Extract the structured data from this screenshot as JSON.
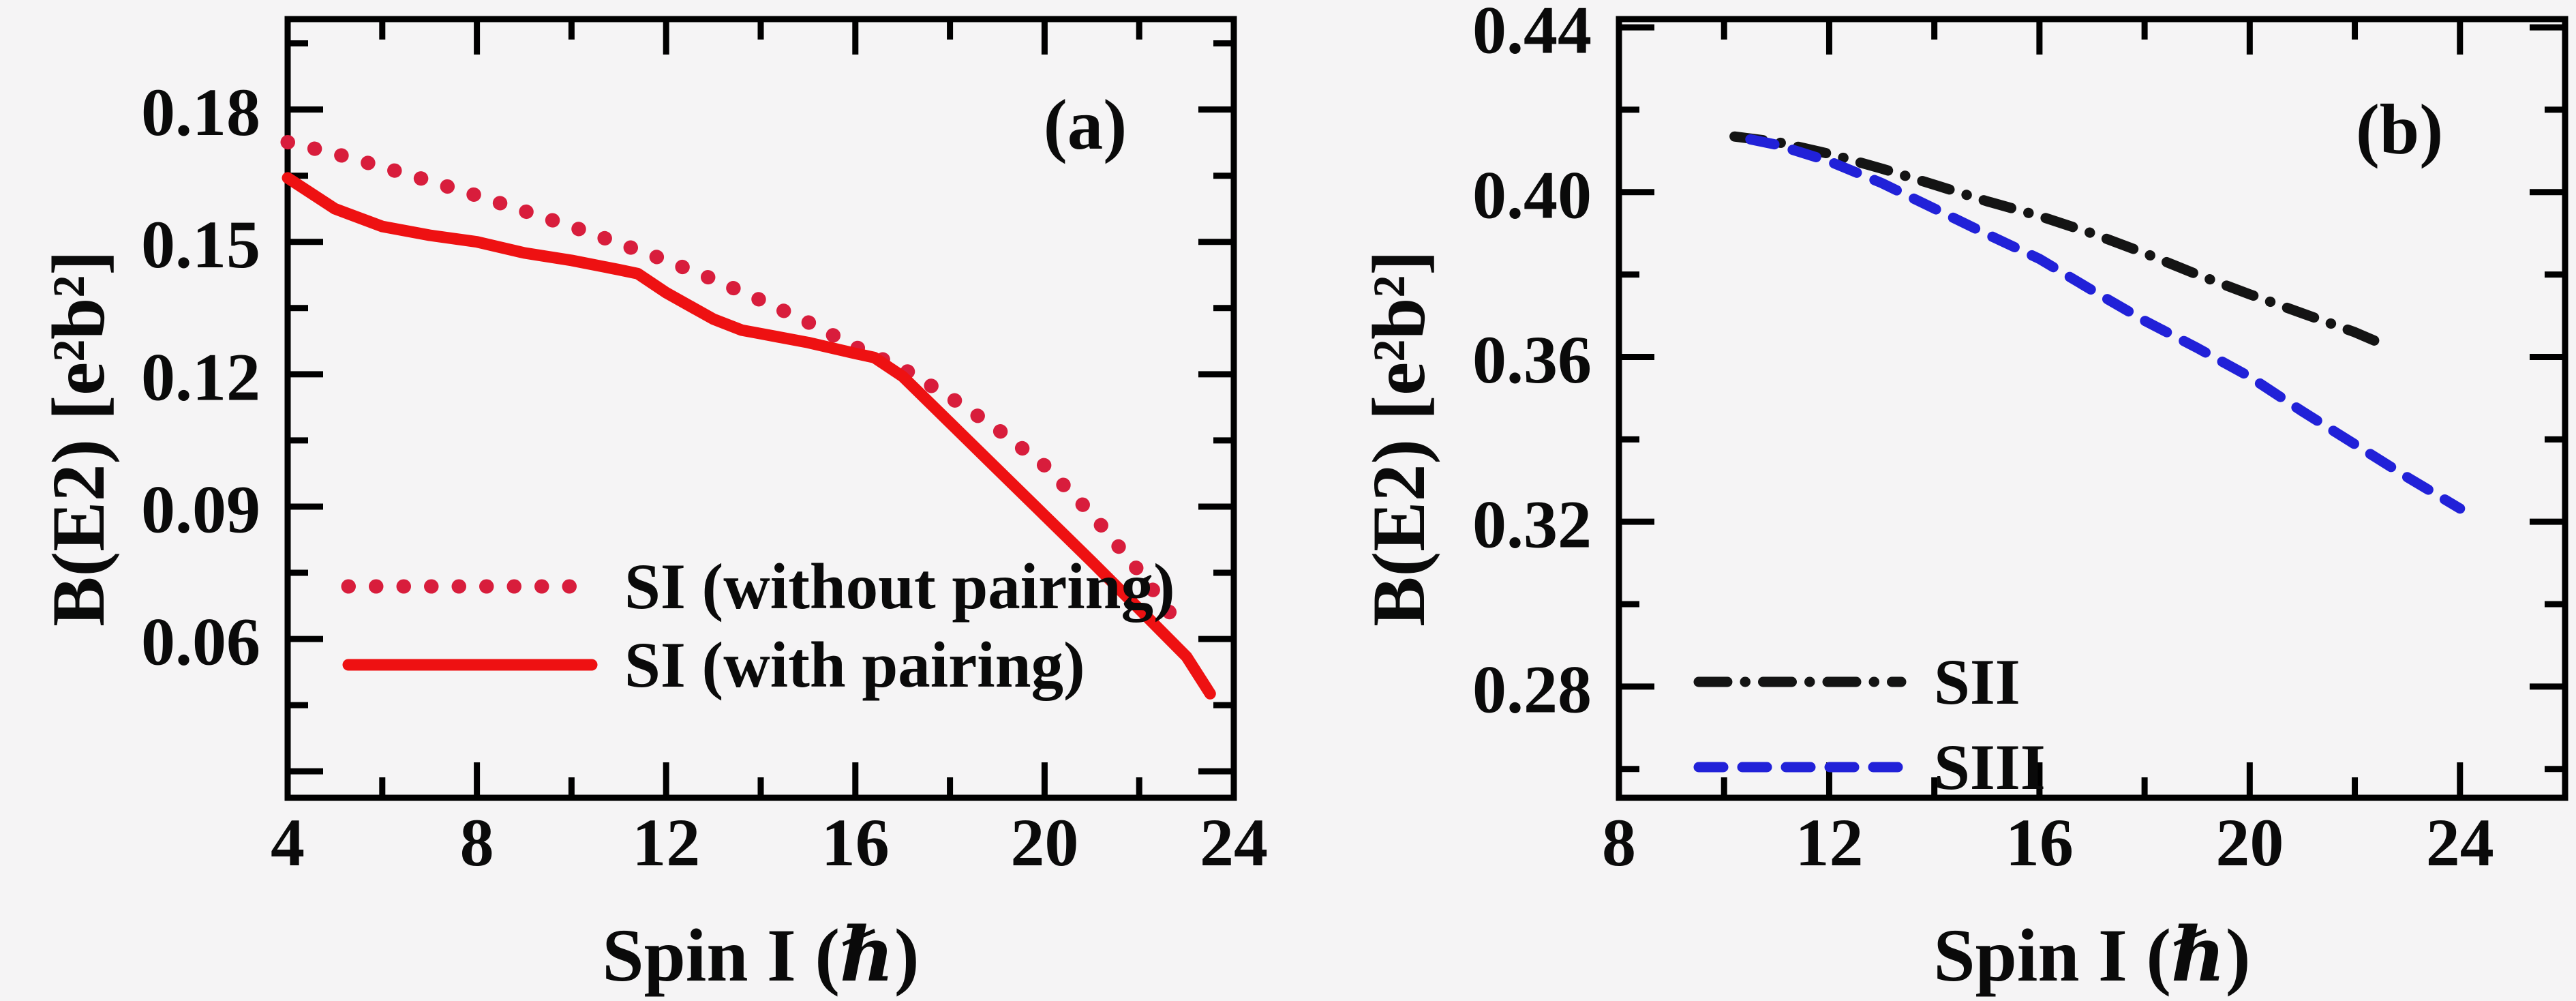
{
  "figure": {
    "background": "#f5f4f5",
    "frame_color": "#000000",
    "text_color": "#0a0a0a"
  },
  "chart_data": [
    {
      "type": "line",
      "tag": "(a)",
      "title": "",
      "xlabel": "Spin I (ℏ)",
      "ylabel": "B(E2) [e²b²]",
      "xlim": [
        4,
        24
      ],
      "ylim": [
        0.024,
        0.2005
      ],
      "grid": false,
      "legend_position": "lower-left",
      "x_ticks_major": [
        4,
        8,
        12,
        16,
        20,
        24
      ],
      "x_tick_labels": [
        "4",
        "8",
        "12",
        "16",
        "20",
        "24"
      ],
      "x_ticks_minor": [
        6,
        10,
        14,
        18,
        22
      ],
      "y_ticks_major": [
        0.18,
        0.15,
        0.12,
        0.09,
        0.06,
        0.03
      ],
      "y_tick_labels": [
        "0.18",
        "0.15",
        "0.12",
        "0.09",
        "0.06",
        ""
      ],
      "y_ticks_minor": [
        0.195,
        0.165,
        0.135,
        0.105,
        0.075,
        0.045
      ],
      "series": [
        {
          "name": "SI (without pairing)",
          "color": "#d81d3c",
          "style": "dotted",
          "x": [
            4,
            5,
            6,
            7,
            8,
            9,
            10,
            11,
            12,
            13,
            14,
            15,
            16,
            17,
            18,
            19,
            20,
            21,
            22,
            22.9
          ],
          "y": [
            0.1726,
            0.17,
            0.167,
            0.1638,
            0.1605,
            0.157,
            0.1535,
            0.1497,
            0.1458,
            0.1415,
            0.1368,
            0.1318,
            0.1262,
            0.1213,
            0.1148,
            0.1076,
            0.0993,
            0.0883,
            0.0753,
            0.0623
          ]
        },
        {
          "name": "SI (with pairing)",
          "color": "#ee1112",
          "style": "solid",
          "x": [
            4,
            5,
            6,
            7,
            8,
            9,
            10,
            11,
            11.4,
            12,
            13,
            13.6,
            14,
            15,
            16,
            16.4,
            17,
            18,
            19,
            20,
            21,
            22,
            23,
            23.5
          ],
          "y": [
            0.1645,
            0.1575,
            0.1535,
            0.1515,
            0.15,
            0.1475,
            0.1458,
            0.1437,
            0.1428,
            0.1385,
            0.1325,
            0.13,
            0.1292,
            0.1272,
            0.1247,
            0.1238,
            0.1195,
            0.109,
            0.0985,
            0.088,
            0.0775,
            0.0668,
            0.056,
            0.0476
          ]
        }
      ]
    },
    {
      "type": "line",
      "tag": "(b)",
      "title": "",
      "xlabel": "Spin I (ℏ)",
      "ylabel": "B(E2) [e²b²]",
      "xlim": [
        8,
        26
      ],
      "ylim": [
        0.253,
        0.442
      ],
      "grid": false,
      "legend_position": "lower-left",
      "x_ticks_major": [
        8,
        12,
        16,
        20,
        24
      ],
      "x_tick_labels": [
        "8",
        "12",
        "16",
        "20",
        "24"
      ],
      "x_ticks_minor": [
        10,
        14,
        18,
        22
      ],
      "y_ticks_major": [
        0.44,
        0.4,
        0.36,
        0.32,
        0.28
      ],
      "y_tick_labels": [
        "0.44",
        "0.40",
        "0.36",
        "0.32",
        "0.28"
      ],
      "y_ticks_minor": [
        0.42,
        0.38,
        0.34,
        0.3,
        0.26
      ],
      "series": [
        {
          "name": "SII",
          "color": "#141414",
          "style": "dashdot",
          "x": [
            10.2,
            11,
            12,
            13,
            14,
            15,
            16,
            17,
            18,
            19,
            20,
            21,
            22,
            22.4
          ],
          "y": [
            0.4135,
            0.4122,
            0.4093,
            0.4057,
            0.4018,
            0.3978,
            0.3942,
            0.39,
            0.3852,
            0.38,
            0.3752,
            0.3706,
            0.366,
            0.3638
          ]
        },
        {
          "name": "SIII",
          "color": "#2121d8",
          "style": "dashed",
          "x": [
            10.5,
            11,
            12,
            13,
            14,
            15,
            16,
            17,
            18,
            19,
            20,
            21,
            22,
            23,
            24
          ],
          "y": [
            0.4128,
            0.4115,
            0.4075,
            0.4022,
            0.396,
            0.3898,
            0.3838,
            0.3762,
            0.3688,
            0.3622,
            0.3552,
            0.3468,
            0.3388,
            0.3308,
            0.3232
          ]
        }
      ]
    }
  ]
}
